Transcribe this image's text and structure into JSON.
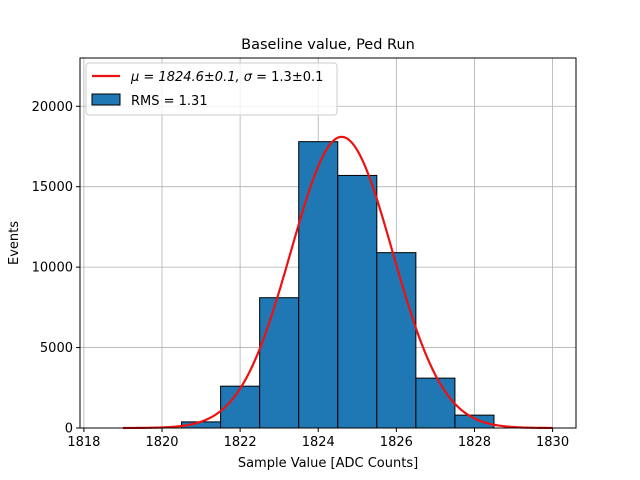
{
  "chart_data": {
    "type": "bar",
    "title": "Baseline value, Ped Run",
    "xlabel": "Sample Value [ADC Counts]",
    "ylabel": "Events",
    "xlim": [
      1817.9,
      1830.6
    ],
    "ylim": [
      0,
      23000
    ],
    "grid": true,
    "legend_position": "top-left",
    "xticks": [
      1818,
      1820,
      1822,
      1824,
      1826,
      1828,
      1830
    ],
    "yticks": [
      0,
      5000,
      10000,
      15000,
      20000
    ],
    "bin_edges": [
      1820.5,
      1821.5,
      1822.5,
      1823.5,
      1824.5,
      1825.5,
      1826.5,
      1827.5,
      1828.5
    ],
    "counts": [
      380,
      2600,
      8100,
      17800,
      15700,
      10900,
      3100,
      800
    ],
    "series": [
      {
        "name": "RMS = 1.31",
        "kind": "histogram",
        "color": "#1f77b4",
        "edgecolor": "#000000"
      },
      {
        "name_prefix": "μ = 1824.6±0.1, ",
        "name_sigma": "σ",
        "name_suffix": " = 1.3±0.1",
        "kind": "gaussian_fit",
        "color": "#ee1111",
        "mu": 1824.6,
        "sigma": 1.3,
        "amplitude": 18100,
        "x_range": [
          1819,
          1830
        ]
      }
    ]
  }
}
